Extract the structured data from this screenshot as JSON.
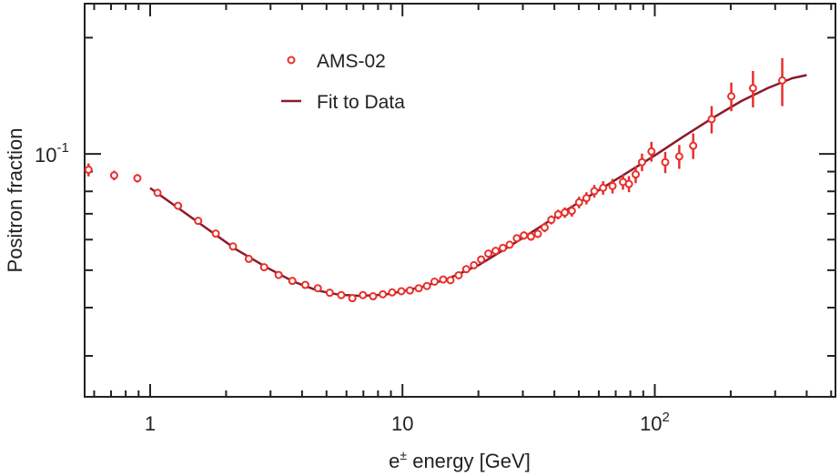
{
  "chart_data": {
    "type": "scatter",
    "xlabel_main": "e",
    "xlabel_sup": "±",
    "xlabel_rest": " energy [GeV]",
    "ylabel": "Positron fraction",
    "x_scale": "log",
    "y_scale": "log",
    "xlim": [
      0.55,
      520
    ],
    "ylim": [
      0.0235,
      0.245
    ],
    "x_ticks": [
      {
        "value": 1,
        "label": "1"
      },
      {
        "value": 10,
        "label": "10"
      },
      {
        "value": 100,
        "base": "10",
        "exp": "2"
      }
    ],
    "y_ticks": [
      {
        "value": 0.1,
        "base": "10",
        "exp": "-1"
      }
    ],
    "grid": false,
    "legend": {
      "placement": "top-left",
      "entries": [
        {
          "label": "AMS-02",
          "marker": "open-circle"
        },
        {
          "label": "Fit to Data",
          "marker": "line"
        }
      ]
    },
    "series": [
      {
        "name": "AMS-02",
        "color": "#e8302c",
        "points": [
          {
            "x": 0.57,
            "y": 0.091,
            "err": 0.0035
          },
          {
            "x": 0.72,
            "y": 0.088,
            "err": 0.0025
          },
          {
            "x": 0.89,
            "y": 0.0865,
            "err": 0.0022
          },
          {
            "x": 1.07,
            "y": 0.0793
          },
          {
            "x": 1.29,
            "y": 0.0734
          },
          {
            "x": 1.55,
            "y": 0.0671
          },
          {
            "x": 1.82,
            "y": 0.0622
          },
          {
            "x": 2.13,
            "y": 0.0576
          },
          {
            "x": 2.46,
            "y": 0.0535
          },
          {
            "x": 2.83,
            "y": 0.0509
          },
          {
            "x": 3.23,
            "y": 0.0486
          },
          {
            "x": 3.66,
            "y": 0.0469
          },
          {
            "x": 4.12,
            "y": 0.0458
          },
          {
            "x": 4.62,
            "y": 0.0449
          },
          {
            "x": 5.15,
            "y": 0.0437
          },
          {
            "x": 5.72,
            "y": 0.0431
          },
          {
            "x": 6.33,
            "y": 0.0423
          },
          {
            "x": 6.97,
            "y": 0.0431
          },
          {
            "x": 7.65,
            "y": 0.0428
          },
          {
            "x": 8.36,
            "y": 0.0433
          },
          {
            "x": 9.1,
            "y": 0.0438
          },
          {
            "x": 9.9,
            "y": 0.0441
          },
          {
            "x": 10.7,
            "y": 0.0443
          },
          {
            "x": 11.6,
            "y": 0.0449
          },
          {
            "x": 12.5,
            "y": 0.0455
          },
          {
            "x": 13.4,
            "y": 0.0467
          },
          {
            "x": 14.5,
            "y": 0.0473
          },
          {
            "x": 15.5,
            "y": 0.0471
          },
          {
            "x": 16.7,
            "y": 0.0485
          },
          {
            "x": 17.9,
            "y": 0.0503
          },
          {
            "x": 19.2,
            "y": 0.0515
          },
          {
            "x": 20.5,
            "y": 0.0533,
            "err": 0.001
          },
          {
            "x": 21.9,
            "y": 0.0552,
            "err": 0.0012
          },
          {
            "x": 23.4,
            "y": 0.0561,
            "err": 0.0012
          },
          {
            "x": 25.0,
            "y": 0.0571,
            "err": 0.0012
          },
          {
            "x": 26.6,
            "y": 0.0582,
            "err": 0.0013
          },
          {
            "x": 28.4,
            "y": 0.0605,
            "err": 0.0013
          },
          {
            "x": 30.3,
            "y": 0.0615,
            "err": 0.0015
          },
          {
            "x": 32.3,
            "y": 0.0611,
            "err": 0.0015
          },
          {
            "x": 34.4,
            "y": 0.0621,
            "err": 0.0015
          },
          {
            "x": 36.6,
            "y": 0.0645,
            "err": 0.0018
          },
          {
            "x": 38.9,
            "y": 0.0675,
            "err": 0.0018
          },
          {
            "x": 41.4,
            "y": 0.0697,
            "err": 0.002
          },
          {
            "x": 44.0,
            "y": 0.0705,
            "err": 0.0022
          },
          {
            "x": 46.9,
            "y": 0.0712,
            "err": 0.0024
          },
          {
            "x": 50.1,
            "y": 0.0749,
            "err": 0.0026
          },
          {
            "x": 53.6,
            "y": 0.0768,
            "err": 0.0028
          },
          {
            "x": 57.6,
            "y": 0.0801,
            "err": 0.003
          },
          {
            "x": 62.4,
            "y": 0.0817,
            "err": 0.0033
          },
          {
            "x": 68.0,
            "y": 0.0826,
            "err": 0.0036
          },
          {
            "x": 74.8,
            "y": 0.0846,
            "err": 0.0038
          },
          {
            "x": 79.0,
            "y": 0.0836,
            "err": 0.004
          },
          {
            "x": 84.0,
            "y": 0.0885,
            "err": 0.0045
          },
          {
            "x": 89.0,
            "y": 0.0952,
            "err": 0.005
          },
          {
            "x": 97.0,
            "y": 0.1015,
            "err": 0.006
          },
          {
            "x": 110.0,
            "y": 0.0952,
            "err": 0.006
          },
          {
            "x": 125.0,
            "y": 0.0985,
            "err": 0.007
          },
          {
            "x": 142.0,
            "y": 0.105,
            "err": 0.008
          },
          {
            "x": 168.0,
            "y": 0.123,
            "err": 0.01
          },
          {
            "x": 201.0,
            "y": 0.141,
            "err": 0.012
          },
          {
            "x": 245.0,
            "y": 0.148,
            "err": 0.016
          },
          {
            "x": 320.0,
            "y": 0.155,
            "err": 0.022
          }
        ]
      },
      {
        "name": "Fit to Data",
        "color": "#8b1a2a",
        "points": [
          {
            "x": 1.0,
            "y": 0.0816
          },
          {
            "x": 1.3,
            "y": 0.0722
          },
          {
            "x": 1.7,
            "y": 0.0637
          },
          {
            "x": 2.2,
            "y": 0.0565
          },
          {
            "x": 2.9,
            "y": 0.0508
          },
          {
            "x": 3.7,
            "y": 0.0467
          },
          {
            "x": 4.6,
            "y": 0.0443
          },
          {
            "x": 5.6,
            "y": 0.0432
          },
          {
            "x": 6.8,
            "y": 0.0429
          },
          {
            "x": 8.5,
            "y": 0.0432
          },
          {
            "x": 10.0,
            "y": 0.0441
          },
          {
            "x": 12.0,
            "y": 0.0453
          },
          {
            "x": 15.0,
            "y": 0.0474
          },
          {
            "x": 20.0,
            "y": 0.0515
          },
          {
            "x": 25.0,
            "y": 0.0563
          },
          {
            "x": 30.0,
            "y": 0.0606
          },
          {
            "x": 40.0,
            "y": 0.0684
          },
          {
            "x": 50.0,
            "y": 0.0749
          },
          {
            "x": 60.0,
            "y": 0.0805
          },
          {
            "x": 80.0,
            "y": 0.0905
          },
          {
            "x": 100.0,
            "y": 0.0991
          },
          {
            "x": 130.0,
            "y": 0.111
          },
          {
            "x": 170.0,
            "y": 0.124
          },
          {
            "x": 220.0,
            "y": 0.137
          },
          {
            "x": 280.0,
            "y": 0.148
          },
          {
            "x": 350.0,
            "y": 0.157
          },
          {
            "x": 400.0,
            "y": 0.16
          }
        ]
      }
    ]
  }
}
